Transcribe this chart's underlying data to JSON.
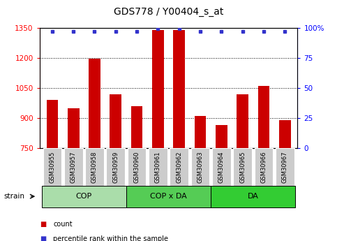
{
  "title": "GDS778 / Y00404_s_at",
  "categories": [
    "GSM30955",
    "GSM30957",
    "GSM30958",
    "GSM30959",
    "GSM30960",
    "GSM30961",
    "GSM30962",
    "GSM30963",
    "GSM30964",
    "GSM30965",
    "GSM30966",
    "GSM30967"
  ],
  "bar_values": [
    990,
    950,
    1195,
    1020,
    960,
    1340,
    1340,
    910,
    865,
    1020,
    1060,
    890
  ],
  "percentile_values": [
    97,
    97,
    97,
    97,
    97,
    99,
    99,
    97,
    97,
    97,
    97,
    97
  ],
  "ylim_left": [
    750,
    1350
  ],
  "ylim_right": [
    0,
    100
  ],
  "yticks_left": [
    750,
    900,
    1050,
    1200,
    1350
  ],
  "yticks_right": [
    0,
    25,
    50,
    75,
    100
  ],
  "bar_color": "#cc0000",
  "dot_color": "#3333cc",
  "groups": [
    {
      "label": "COP",
      "start": 0,
      "end": 4,
      "color": "#aaddaa"
    },
    {
      "label": "COP x DA",
      "start": 4,
      "end": 8,
      "color": "#55cc55"
    },
    {
      "label": "DA",
      "start": 8,
      "end": 12,
      "color": "#33cc33"
    }
  ],
  "legend_items": [
    {
      "label": "count",
      "color": "#cc0000"
    },
    {
      "label": "percentile rank within the sample",
      "color": "#3333cc"
    }
  ],
  "strain_label": "strain",
  "background_color": "#ffffff",
  "tick_bg_color": "#cccccc",
  "title_fontsize": 10,
  "tick_fontsize": 7.5
}
